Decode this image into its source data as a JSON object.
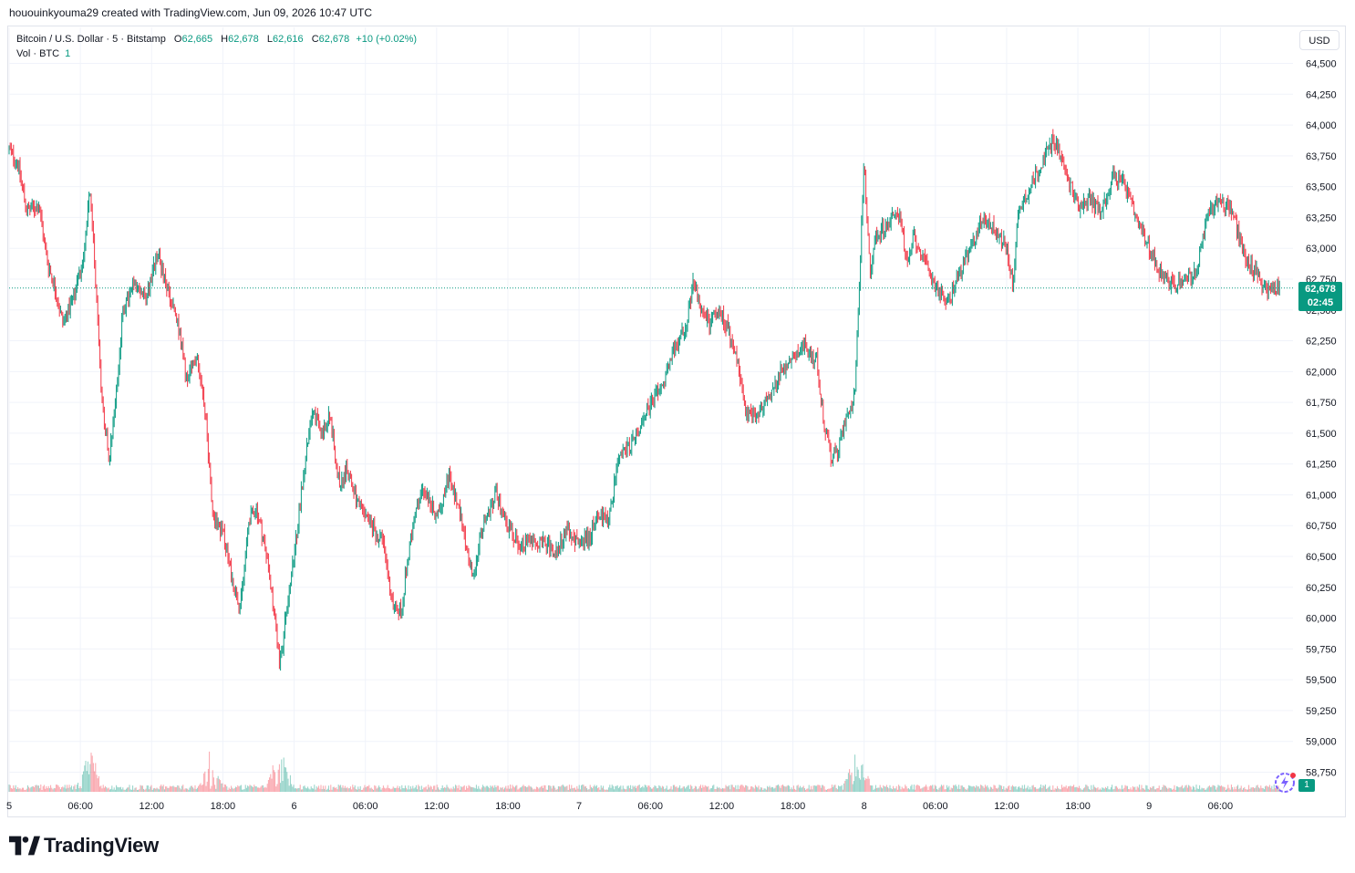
{
  "header": {
    "created_by": "hououinkyouma29 created with TradingView.com, Jun 09, 2026 10:47 UTC"
  },
  "legend": {
    "symbol": "Bitcoin / U.S. Dollar · 5 · Bitstamp",
    "o_label": "O",
    "o_value": "62,665",
    "h_label": "H",
    "h_value": "62,678",
    "l_label": "L",
    "l_value": "62,616",
    "c_label": "C",
    "c_value": "62,678",
    "change": "+10 (+0.02%)",
    "vol_label": "Vol · BTC",
    "vol_value": "1"
  },
  "currency_button": "USD",
  "last_price": {
    "price": "62,678",
    "countdown": "02:45"
  },
  "volume_tag": "1",
  "brand": {
    "name": "TradingView"
  },
  "colors": {
    "up": "#089981",
    "down": "#f23645",
    "grid": "#f0f3fa",
    "text": "#131722"
  },
  "icons": [
    "tradingview-logo-icon",
    "flash-icon"
  ],
  "chart_data": {
    "type": "candlestick",
    "symbol": "BTCUSD",
    "interval": "5",
    "price_axis_ticks": [
      58750,
      59000,
      59250,
      59500,
      59750,
      60000,
      60250,
      60500,
      60750,
      61000,
      61250,
      61500,
      61750,
      62000,
      62250,
      62500,
      62750,
      63000,
      63250,
      63500,
      63750,
      64000,
      64250,
      64500
    ],
    "price_tick_labels": [
      "58,750",
      "59,000",
      "59,250",
      "59,500",
      "59,750",
      "60,000",
      "60,250",
      "60,500",
      "60,750",
      "61,000",
      "61,250",
      "61,500",
      "61,750",
      "62,000",
      "62,250",
      "62,500",
      "62,750",
      "63,000",
      "63,250",
      "63,500",
      "63,750",
      "64,000",
      "64,250",
      "64,500"
    ],
    "ylim": [
      58650,
      64700
    ],
    "time_axis_labels": [
      "5",
      "06:00",
      "12:00",
      "18:00",
      "6",
      "06:00",
      "12:00",
      "18:00",
      "7",
      "06:00",
      "12:00",
      "18:00",
      "8",
      "06:00",
      "12:00",
      "18:00",
      "9",
      "06:00"
    ],
    "time_axis_hours": [
      0,
      6,
      12,
      18,
      24,
      30,
      36,
      42,
      48,
      54,
      60,
      66,
      72,
      78,
      84,
      90,
      96,
      102
    ],
    "hour_range": [
      0,
      107.5
    ],
    "price_path": [
      [
        0.0,
        63800
      ],
      [
        0.7,
        63700
      ],
      [
        1.5,
        63300
      ],
      [
        2.5,
        63350
      ],
      [
        3.2,
        62900
      ],
      [
        3.8,
        62700
      ],
      [
        4.5,
        62400
      ],
      [
        5.5,
        62600
      ],
      [
        6.2,
        62900
      ],
      [
        6.8,
        63500
      ],
      [
        7.3,
        62700
      ],
      [
        7.8,
        61800
      ],
      [
        8.4,
        61300
      ],
      [
        9.0,
        61800
      ],
      [
        9.6,
        62500
      ],
      [
        10.5,
        62700
      ],
      [
        11.5,
        62600
      ],
      [
        12.5,
        62950
      ],
      [
        13.5,
        62600
      ],
      [
        14.3,
        62350
      ],
      [
        15.0,
        61900
      ],
      [
        15.8,
        62150
      ],
      [
        16.5,
        61700
      ],
      [
        17.2,
        60800
      ],
      [
        18.0,
        60700
      ],
      [
        18.8,
        60300
      ],
      [
        19.5,
        60100
      ],
      [
        20.2,
        60800
      ],
      [
        20.8,
        60900
      ],
      [
        21.5,
        60600
      ],
      [
        22.2,
        60150
      ],
      [
        22.8,
        59600
      ],
      [
        23.4,
        60100
      ],
      [
        24.0,
        60500
      ],
      [
        24.7,
        61100
      ],
      [
        25.5,
        61700
      ],
      [
        26.3,
        61500
      ],
      [
        27.0,
        61650
      ],
      [
        27.8,
        61100
      ],
      [
        28.5,
        61200
      ],
      [
        29.5,
        60900
      ],
      [
        30.5,
        60750
      ],
      [
        31.5,
        60600
      ],
      [
        32.3,
        60100
      ],
      [
        33.0,
        60050
      ],
      [
        33.6,
        60500
      ],
      [
        34.3,
        60900
      ],
      [
        35.0,
        61050
      ],
      [
        36.0,
        60800
      ],
      [
        37.0,
        61150
      ],
      [
        38.0,
        60850
      ],
      [
        39.0,
        60350
      ],
      [
        40.0,
        60750
      ],
      [
        41.0,
        61000
      ],
      [
        42.0,
        60750
      ],
      [
        43.0,
        60600
      ],
      [
        44.0,
        60650
      ],
      [
        45.0,
        60600
      ],
      [
        46.0,
        60550
      ],
      [
        47.0,
        60700
      ],
      [
        48.0,
        60600
      ],
      [
        48.8,
        60650
      ],
      [
        49.6,
        60850
      ],
      [
        50.5,
        60800
      ],
      [
        51.3,
        61300
      ],
      [
        52.0,
        61350
      ],
      [
        53.0,
        61500
      ],
      [
        54.0,
        61750
      ],
      [
        55.0,
        61850
      ],
      [
        56.0,
        62200
      ],
      [
        57.0,
        62350
      ],
      [
        57.6,
        62700
      ],
      [
        58.3,
        62500
      ],
      [
        59.0,
        62400
      ],
      [
        59.8,
        62500
      ],
      [
        60.5,
        62350
      ],
      [
        61.5,
        62000
      ],
      [
        62.0,
        61650
      ],
      [
        63.0,
        61650
      ],
      [
        64.0,
        61800
      ],
      [
        65.0,
        62000
      ],
      [
        66.0,
        62100
      ],
      [
        67.0,
        62200
      ],
      [
        68.0,
        62100
      ],
      [
        68.6,
        61600
      ],
      [
        69.2,
        61300
      ],
      [
        69.8,
        61350
      ],
      [
        70.5,
        61650
      ],
      [
        71.2,
        61800
      ],
      [
        72.0,
        63700
      ],
      [
        72.5,
        62800
      ],
      [
        73.0,
        63100
      ],
      [
        74.0,
        63200
      ],
      [
        75.0,
        63300
      ],
      [
        75.6,
        62850
      ],
      [
        76.2,
        63100
      ],
      [
        77.0,
        62900
      ],
      [
        78.0,
        62700
      ],
      [
        79.0,
        62550
      ],
      [
        80.0,
        62800
      ],
      [
        81.0,
        63000
      ],
      [
        82.0,
        63250
      ],
      [
        83.0,
        63150
      ],
      [
        84.0,
        63000
      ],
      [
        84.5,
        62700
      ],
      [
        85.0,
        63300
      ],
      [
        86.0,
        63500
      ],
      [
        87.0,
        63700
      ],
      [
        88.0,
        63900
      ],
      [
        89.0,
        63600
      ],
      [
        90.0,
        63350
      ],
      [
        91.0,
        63400
      ],
      [
        92.0,
        63300
      ],
      [
        93.0,
        63600
      ],
      [
        94.0,
        63500
      ],
      [
        95.0,
        63200
      ],
      [
        96.0,
        63000
      ],
      [
        97.0,
        62800
      ],
      [
        98.0,
        62700
      ],
      [
        99.0,
        62750
      ],
      [
        100.0,
        62800
      ],
      [
        101.0,
        63300
      ],
      [
        102.0,
        63400
      ],
      [
        103.0,
        63300
      ],
      [
        104.0,
        62950
      ],
      [
        105.0,
        62800
      ],
      [
        106.0,
        62650
      ],
      [
        107.0,
        62678
      ]
    ],
    "volume_spikes_hours": [
      6.8,
      17.0,
      22.8,
      71.4
    ]
  }
}
